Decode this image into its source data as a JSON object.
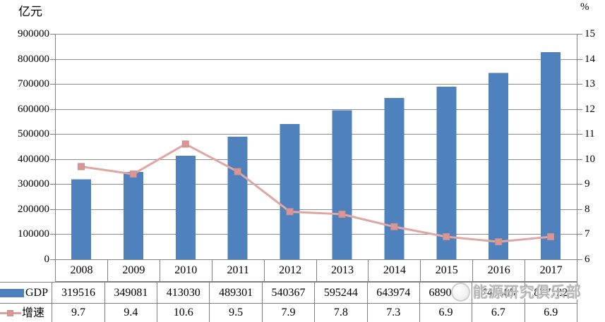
{
  "chart_data": {
    "type": "bar+line combo",
    "title": "",
    "categories": [
      "2008",
      "2009",
      "2010",
      "2011",
      "2012",
      "2013",
      "2014",
      "2015",
      "2016",
      "2017"
    ],
    "series": [
      {
        "name": "GDP",
        "type": "bar",
        "axis": "left",
        "color": "#4f81bd",
        "values": [
          319516,
          349081,
          413030,
          489301,
          540367,
          595244,
          643974,
          689052,
          743585,
          827122
        ]
      },
      {
        "name": "增速",
        "type": "line",
        "axis": "right",
        "color": "#d99694",
        "line_color": "#dfa6a3",
        "marker": "square",
        "values": [
          9.7,
          9.4,
          10.6,
          9.5,
          7.9,
          7.8,
          7.3,
          6.9,
          6.7,
          6.9
        ]
      }
    ],
    "left_axis": {
      "unit": "亿元",
      "min": 0,
      "max": 900000,
      "step": 100000
    },
    "right_axis": {
      "unit": "%",
      "min": 6,
      "max": 15,
      "step": 1
    },
    "grid": true,
    "grid_color": "#8c8c8c",
    "axis_color": "#808080",
    "legend_position": "table-left"
  },
  "watermark": {
    "text": "能源研究俱乐部"
  }
}
